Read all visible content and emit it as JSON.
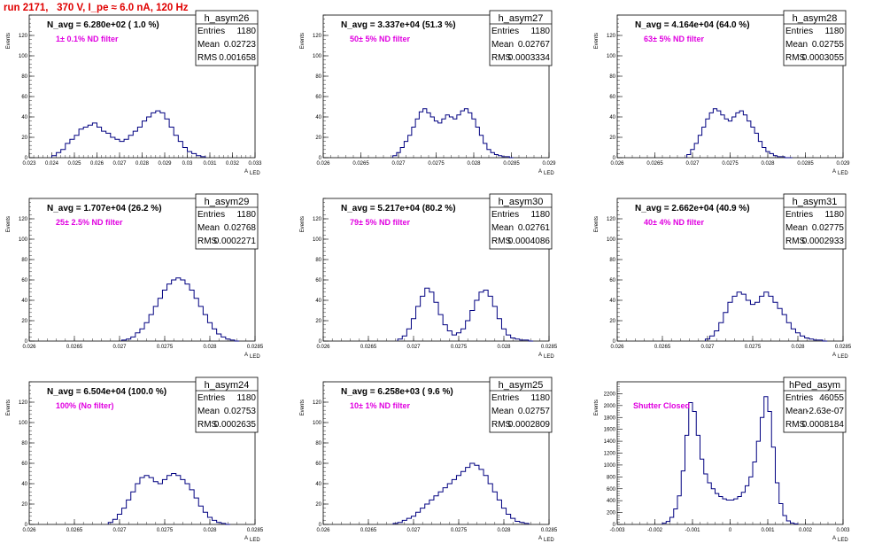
{
  "run_title": "run 2171,   370 V, I_pe ≈ 6.0 nA, 120 Hz",
  "chart_data": [
    {
      "type": "histogram",
      "name": "h_asym26",
      "n_avg": "N_avg = 6.280e+02 ( 1.0 %)",
      "filter_label": "1± 0.1% ND filter",
      "stats": {
        "entries_label": "Entries",
        "entries": "1180",
        "mean_label": "Mean",
        "mean": "0.02723",
        "rms_label": "RMS",
        "rms": "0.001658"
      },
      "xlim": [
        0.023,
        0.033
      ],
      "ylim": [
        0,
        140
      ],
      "xticks": [
        "0.023",
        "0.024",
        "0.025",
        "0.026",
        "0.027",
        "0.028",
        "0.029",
        "0.03",
        "0.031",
        "0.032",
        "0.033"
      ],
      "yticks": [
        "0",
        "20",
        "40",
        "60",
        "80",
        "100",
        "120"
      ],
      "ylabel": "Events",
      "xlabel": "A",
      "xlabel_sub": "LED",
      "bin_centers": [
        0.0241,
        0.0243,
        0.0245,
        0.0247,
        0.0249,
        0.0251,
        0.0253,
        0.0255,
        0.0257,
        0.0259,
        0.0261,
        0.0263,
        0.0265,
        0.0267,
        0.0269,
        0.0271,
        0.0273,
        0.0275,
        0.0277,
        0.0279,
        0.0281,
        0.0283,
        0.0285,
        0.0287,
        0.0289,
        0.0291,
        0.0293,
        0.0295,
        0.0297,
        0.0299,
        0.0301,
        0.0303,
        0.0305,
        0.0307
      ],
      "counts": [
        2,
        5,
        8,
        14,
        18,
        22,
        28,
        30,
        32,
        34,
        30,
        26,
        24,
        20,
        18,
        16,
        18,
        22,
        26,
        30,
        36,
        40,
        44,
        46,
        44,
        38,
        30,
        22,
        16,
        10,
        6,
        4,
        2,
        1
      ]
    },
    {
      "type": "histogram",
      "name": "h_asym27",
      "n_avg": "N_avg = 3.337e+04 (51.3 %)",
      "filter_label": "50± 5% ND filter",
      "stats": {
        "entries_label": "Entries",
        "entries": "1180",
        "mean_label": "Mean",
        "mean": "0.02767",
        "rms_label": "RMS",
        "rms": "0.0003334"
      },
      "xlim": [
        0.026,
        0.029
      ],
      "ylim": [
        0,
        140
      ],
      "xticks": [
        "0.026",
        "0.0265",
        "0.027",
        "0.0275",
        "0.028",
        "0.0285",
        "0.029"
      ],
      "yticks": [
        "0",
        "20",
        "40",
        "60",
        "80",
        "100",
        "120"
      ],
      "ylabel": "Events",
      "xlabel": "A",
      "xlabel_sub": "LED",
      "bin_centers": [
        0.02695,
        0.027,
        0.02705,
        0.0271,
        0.02715,
        0.0272,
        0.02725,
        0.0273,
        0.02735,
        0.0274,
        0.02745,
        0.0275,
        0.02755,
        0.0276,
        0.02765,
        0.0277,
        0.02775,
        0.0278,
        0.02785,
        0.0279,
        0.02795,
        0.028,
        0.02805,
        0.0281,
        0.02815,
        0.0282,
        0.02825,
        0.0283,
        0.02835,
        0.0284,
        0.02845,
        0.0285
      ],
      "counts": [
        2,
        5,
        10,
        16,
        22,
        30,
        38,
        45,
        48,
        44,
        40,
        36,
        34,
        38,
        42,
        40,
        38,
        42,
        46,
        48,
        44,
        38,
        30,
        22,
        14,
        8,
        5,
        3,
        2,
        1,
        1,
        0
      ]
    },
    {
      "type": "histogram",
      "name": "h_asym28",
      "n_avg": "N_avg = 4.164e+04 (64.0 %)",
      "filter_label": "63± 5% ND filter",
      "stats": {
        "entries_label": "Entries",
        "entries": "1180",
        "mean_label": "Mean",
        "mean": "0.02755",
        "rms_label": "RMS",
        "rms": "0.0003055"
      },
      "xlim": [
        0.026,
        0.029
      ],
      "ylim": [
        0,
        140
      ],
      "xticks": [
        "0.026",
        "0.0265",
        "0.027",
        "0.0275",
        "0.028",
        "0.0285",
        "0.029"
      ],
      "yticks": [
        "0",
        "20",
        "40",
        "60",
        "80",
        "100",
        "120"
      ],
      "ylabel": "Events",
      "xlabel": "A",
      "xlabel_sub": "LED",
      "bin_centers": [
        0.02695,
        0.027,
        0.02705,
        0.0271,
        0.02715,
        0.0272,
        0.02725,
        0.0273,
        0.02735,
        0.0274,
        0.02745,
        0.0275,
        0.02755,
        0.0276,
        0.02765,
        0.0277,
        0.02775,
        0.0278,
        0.02785,
        0.0279,
        0.02795,
        0.028,
        0.02805,
        0.0281,
        0.02815,
        0.0282,
        0.02825,
        0.0283
      ],
      "counts": [
        3,
        8,
        14,
        22,
        30,
        38,
        44,
        48,
        46,
        42,
        38,
        36,
        40,
        44,
        46,
        42,
        36,
        30,
        24,
        16,
        10,
        6,
        4,
        2,
        1,
        1,
        0,
        0
      ]
    },
    {
      "type": "histogram",
      "name": "h_asym29",
      "n_avg": "N_avg = 1.707e+04 (26.2 %)",
      "filter_label": "25± 2.5% ND filter",
      "stats": {
        "entries_label": "Entries",
        "entries": "1180",
        "mean_label": "Mean",
        "mean": "0.02768",
        "rms_label": "RMS",
        "rms": "0.0002271"
      },
      "xlim": [
        0.026,
        0.0285
      ],
      "ylim": [
        0,
        140
      ],
      "xticks": [
        "0.026",
        "0.0265",
        "0.027",
        "0.0275",
        "0.028",
        "0.0285"
      ],
      "yticks": [
        "0",
        "20",
        "40",
        "60",
        "80",
        "100",
        "120"
      ],
      "ylabel": "Events",
      "xlabel": "A",
      "xlabel_sub": "LED",
      "bin_centers": [
        0.02705,
        0.0271,
        0.02715,
        0.0272,
        0.02725,
        0.0273,
        0.02735,
        0.0274,
        0.02745,
        0.0275,
        0.02755,
        0.0276,
        0.02765,
        0.0277,
        0.02775,
        0.0278,
        0.02785,
        0.0279,
        0.02795,
        0.028,
        0.02805,
        0.0281,
        0.02815,
        0.0282,
        0.02825,
        0.0283
      ],
      "counts": [
        1,
        2,
        4,
        8,
        12,
        18,
        26,
        34,
        42,
        50,
        56,
        60,
        62,
        60,
        56,
        50,
        42,
        34,
        26,
        18,
        12,
        7,
        4,
        2,
        1,
        0
      ]
    },
    {
      "type": "histogram",
      "name": "h_asym30",
      "n_avg": "N_avg = 5.217e+04 (80.2 %)",
      "filter_label": "79± 5% ND filter",
      "stats": {
        "entries_label": "Entries",
        "entries": "1180",
        "mean_label": "Mean",
        "mean": "0.02761",
        "rms_label": "RMS",
        "rms": "0.0004086"
      },
      "xlim": [
        0.026,
        0.0285
      ],
      "ylim": [
        0,
        140
      ],
      "xticks": [
        "0.026",
        "0.0265",
        "0.027",
        "0.0275",
        "0.028",
        "0.0285"
      ],
      "yticks": [
        "0",
        "20",
        "40",
        "60",
        "80",
        "100",
        "120"
      ],
      "ylabel": "Events",
      "xlabel": "A",
      "xlabel_sub": "LED",
      "bin_centers": [
        0.02685,
        0.0269,
        0.02695,
        0.027,
        0.02705,
        0.0271,
        0.02715,
        0.0272,
        0.02725,
        0.0273,
        0.02735,
        0.0274,
        0.02745,
        0.0275,
        0.02755,
        0.0276,
        0.02765,
        0.0277,
        0.02775,
        0.0278,
        0.02785,
        0.0279,
        0.02795,
        0.028,
        0.02805,
        0.0281,
        0.02815,
        0.0282,
        0.02825,
        0.0283
      ],
      "counts": [
        2,
        5,
        12,
        22,
        34,
        44,
        52,
        48,
        38,
        26,
        16,
        10,
        6,
        8,
        12,
        20,
        30,
        40,
        48,
        50,
        44,
        34,
        22,
        12,
        6,
        3,
        2,
        1,
        1,
        0
      ]
    },
    {
      "type": "histogram",
      "name": "h_asym31",
      "n_avg": "N_avg = 2.662e+04 (40.9 %)",
      "filter_label": "40± 4% ND filter",
      "stats": {
        "entries_label": "Entries",
        "entries": "1180",
        "mean_label": "Mean",
        "mean": "0.02775",
        "rms_label": "RMS",
        "rms": "0.0002933"
      },
      "xlim": [
        0.026,
        0.0285
      ],
      "ylim": [
        0,
        140
      ],
      "xticks": [
        "0.026",
        "0.0265",
        "0.027",
        "0.0275",
        "0.028",
        "0.0285"
      ],
      "yticks": [
        "0",
        "20",
        "40",
        "60",
        "80",
        "100",
        "120"
      ],
      "ylabel": "Events",
      "xlabel": "A",
      "xlabel_sub": "LED",
      "bin_centers": [
        0.027,
        0.02705,
        0.0271,
        0.02715,
        0.0272,
        0.02725,
        0.0273,
        0.02735,
        0.0274,
        0.02745,
        0.0275,
        0.02755,
        0.0276,
        0.02765,
        0.0277,
        0.02775,
        0.0278,
        0.02785,
        0.0279,
        0.02795,
        0.028,
        0.02805,
        0.0281,
        0.02815,
        0.0282,
        0.02825,
        0.0283
      ],
      "counts": [
        2,
        5,
        10,
        18,
        28,
        38,
        44,
        48,
        46,
        40,
        36,
        38,
        44,
        48,
        44,
        38,
        32,
        26,
        18,
        12,
        8,
        5,
        3,
        2,
        1,
        1,
        0
      ]
    },
    {
      "type": "histogram",
      "name": "h_asym24",
      "n_avg": "N_avg = 6.504e+04 (100.0 %)",
      "filter_label": "100% (No filter)",
      "stats": {
        "entries_label": "Entries",
        "entries": "1180",
        "mean_label": "Mean",
        "mean": "0.02753",
        "rms_label": "RMS",
        "rms": "0.0002635"
      },
      "xlim": [
        0.026,
        0.0285
      ],
      "ylim": [
        0,
        140
      ],
      "xticks": [
        "0.026",
        "0.0265",
        "0.027",
        "0.0275",
        "0.028",
        "0.0285"
      ],
      "yticks": [
        "0",
        "20",
        "40",
        "60",
        "80",
        "100",
        "120"
      ],
      "ylabel": "Events",
      "xlabel": "A",
      "xlabel_sub": "LED",
      "bin_centers": [
        0.0269,
        0.02695,
        0.027,
        0.02705,
        0.0271,
        0.02715,
        0.0272,
        0.02725,
        0.0273,
        0.02735,
        0.0274,
        0.02745,
        0.0275,
        0.02755,
        0.0276,
        0.02765,
        0.0277,
        0.02775,
        0.0278,
        0.02785,
        0.0279,
        0.02795,
        0.028,
        0.02805,
        0.0281,
        0.02815,
        0.0282
      ],
      "counts": [
        2,
        5,
        10,
        16,
        24,
        32,
        40,
        46,
        48,
        46,
        42,
        40,
        44,
        48,
        50,
        48,
        44,
        40,
        34,
        26,
        18,
        12,
        7,
        4,
        2,
        1,
        0
      ]
    },
    {
      "type": "histogram",
      "name": "h_asym25",
      "n_avg": "N_avg = 6.258e+03 ( 9.6 %)",
      "filter_label": "10± 1% ND filter",
      "stats": {
        "entries_label": "Entries",
        "entries": "1180",
        "mean_label": "Mean",
        "mean": "0.02757",
        "rms_label": "RMS",
        "rms": "0.0002809"
      },
      "xlim": [
        0.026,
        0.0285
      ],
      "ylim": [
        0,
        140
      ],
      "xticks": [
        "0.026",
        "0.0265",
        "0.027",
        "0.0275",
        "0.028",
        "0.0285"
      ],
      "yticks": [
        "0",
        "20",
        "40",
        "60",
        "80",
        "100",
        "120"
      ],
      "ylabel": "Events",
      "xlabel": "A",
      "xlabel_sub": "LED",
      "bin_centers": [
        0.0268,
        0.02685,
        0.0269,
        0.02695,
        0.027,
        0.02705,
        0.0271,
        0.02715,
        0.0272,
        0.02725,
        0.0273,
        0.02735,
        0.0274,
        0.02745,
        0.0275,
        0.02755,
        0.0276,
        0.02765,
        0.0277,
        0.02775,
        0.0278,
        0.02785,
        0.0279,
        0.02795,
        0.028,
        0.02805,
        0.0281,
        0.02815,
        0.0282,
        0.02825
      ],
      "counts": [
        1,
        2,
        4,
        6,
        8,
        12,
        16,
        20,
        24,
        28,
        32,
        36,
        40,
        44,
        48,
        52,
        56,
        60,
        58,
        54,
        48,
        40,
        32,
        24,
        16,
        10,
        6,
        3,
        2,
        1
      ]
    },
    {
      "type": "histogram",
      "name": "hPed_asym",
      "n_avg": "",
      "filter_label": "Shutter Closed",
      "stats": {
        "entries_label": "Entries",
        "entries": "46055",
        "mean_label": "Mean",
        "mean": "-2.63e-07",
        "rms_label": "RMS",
        "rms": "0.0008184"
      },
      "xlim": [
        -0.003,
        0.003
      ],
      "ylim": [
        0,
        2400
      ],
      "xticks": [
        "-0.003",
        "-0.002",
        "-0.001",
        "0",
        "0.001",
        "0.002",
        "0.003"
      ],
      "yticks": [
        "0",
        "200",
        "400",
        "600",
        "800",
        "1000",
        "1200",
        "1400",
        "1600",
        "1800",
        "2000",
        "2200"
      ],
      "ylabel": "Events",
      "xlabel": "A",
      "xlabel_sub": "LED",
      "bin_centers": [
        -0.00175,
        -0.00165,
        -0.00155,
        -0.00145,
        -0.00135,
        -0.00125,
        -0.00115,
        -0.00105,
        -0.00095,
        -0.00085,
        -0.00075,
        -0.00065,
        -0.00055,
        -0.00045,
        -0.00035,
        -0.00025,
        -0.00015,
        -5e-05,
        5e-05,
        0.00015,
        0.00025,
        0.00035,
        0.00045,
        0.00055,
        0.00065,
        0.00075,
        0.00085,
        0.00095,
        0.00105,
        0.00115,
        0.00125,
        0.00135,
        0.00145,
        0.00155,
        0.00165,
        0.00175
      ],
      "counts": [
        20,
        50,
        120,
        260,
        480,
        900,
        1500,
        2050,
        1900,
        1500,
        1100,
        850,
        700,
        600,
        520,
        470,
        430,
        410,
        410,
        430,
        470,
        540,
        650,
        800,
        1050,
        1400,
        1800,
        2150,
        1900,
        1300,
        700,
        350,
        150,
        60,
        25,
        10
      ]
    }
  ]
}
